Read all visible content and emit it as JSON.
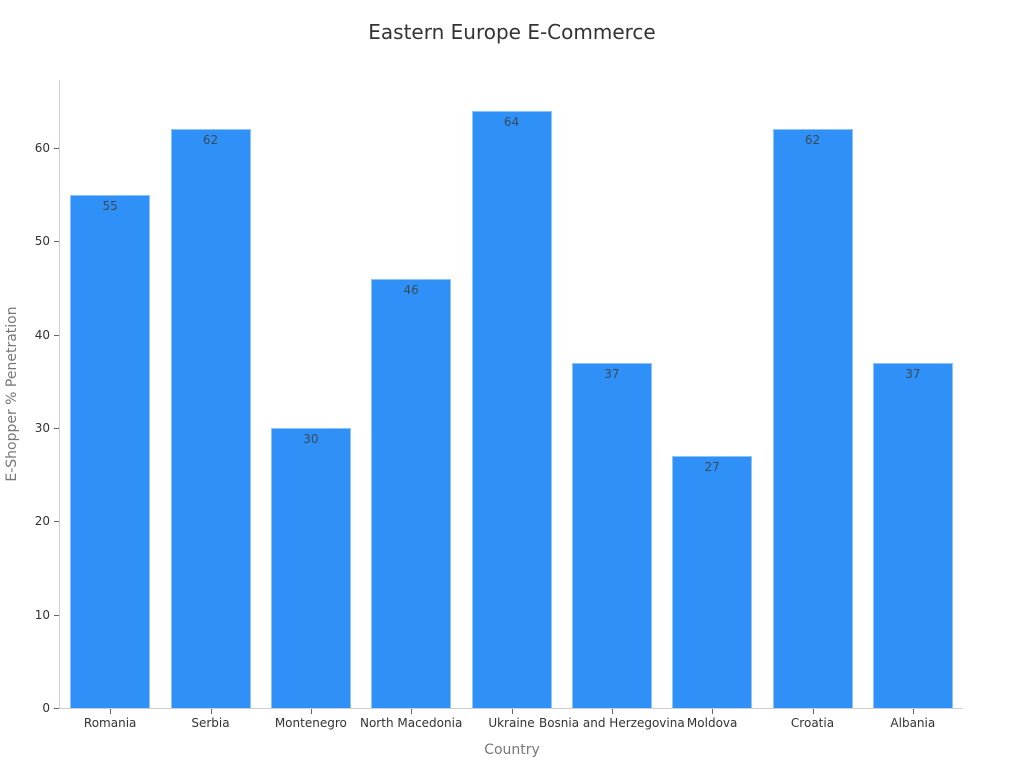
{
  "chart_data": {
    "type": "bar",
    "title": "Eastern Europe E-Commerce",
    "xlabel": "Country",
    "ylabel": "E-Shopper % Penetration",
    "categories": [
      "Romania",
      "Serbia",
      "Montenegro",
      "North Macedonia",
      "Ukraine",
      "Bosnia and Herzegovina",
      "Moldova",
      "Croatia",
      "Albania"
    ],
    "values": [
      55,
      62,
      30,
      46,
      64,
      37,
      27,
      62,
      37
    ],
    "ylim": [
      0,
      67.3
    ],
    "yticks": [
      0,
      10,
      20,
      30,
      40,
      50,
      60
    ],
    "grid": false,
    "legend": null,
    "data_labels": true,
    "bar_color": "#2f91f7"
  }
}
